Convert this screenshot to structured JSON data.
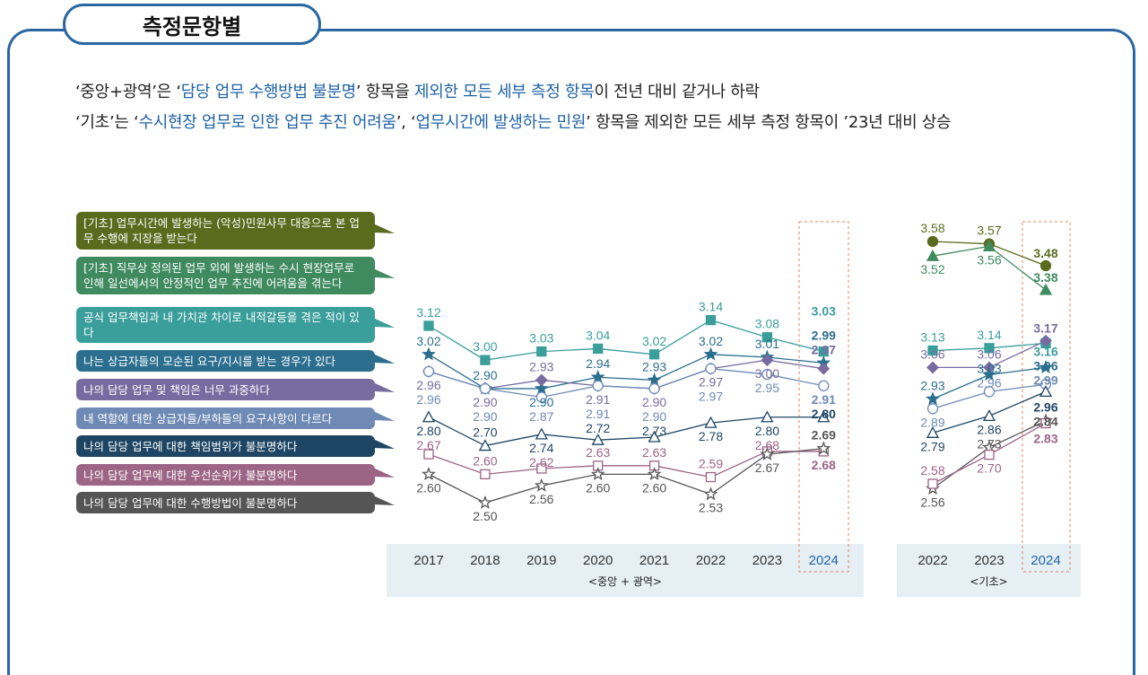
{
  "header": {
    "title": "측정문항별"
  },
  "summary": {
    "line1": [
      {
        "t": "‘중앙+광역’은 ‘",
        "hl": false
      },
      {
        "t": "담당 업무 수행방법 불분명",
        "hl": true
      },
      {
        "t": "’ 항목을 ",
        "hl": false
      },
      {
        "t": "제외한 모든 세부 측정 항목",
        "hl": true
      },
      {
        "t": "이 전년 대비 같거나 하락",
        "hl": false
      }
    ],
    "line2": [
      {
        "t": "‘기초’는 ‘",
        "hl": false
      },
      {
        "t": "수시현장 업무로 인한 업무 추진 어려움",
        "hl": true
      },
      {
        "t": "’, ‘",
        "hl": false
      },
      {
        "t": "업무시간에 발생하는 민원",
        "hl": true
      },
      {
        "t": "’ 항목을 제외한 모든 세부 측정 항목이 ’23년 대비 상승",
        "hl": false
      }
    ]
  },
  "colors": {
    "accent": "#2a66a0",
    "highlight": "#1f63a6",
    "band": "#e5eff4",
    "box": "#e8825a"
  },
  "chart_data": [
    {
      "type": "line",
      "xlabel": "<중앙 + 광역>",
      "categories": [
        "2017",
        "2018",
        "2019",
        "2020",
        "2021",
        "2022",
        "2023",
        "2024"
      ],
      "highlight_category": "2024",
      "series": [
        {
          "name": "공식 업무책임과 내 가치관 차이로 내적갈등을 겪은 적이 있다",
          "color": "#3a9e9b",
          "marker": "square-filled",
          "values": [
            3.12,
            3.0,
            3.03,
            3.04,
            3.02,
            3.14,
            3.08,
            3.03
          ]
        },
        {
          "name": "나는 상급자들의 모순된 요구/지시를 받는 경우가 있다",
          "color": "#2b6e8e",
          "marker": "star-filled",
          "values": [
            3.02,
            2.9,
            2.9,
            2.94,
            2.93,
            3.02,
            3.01,
            2.99
          ]
        },
        {
          "name": "나의 담당 업무 및 책임은 너무 과중하다",
          "color": "#776ba0",
          "marker": "diamond-filled",
          "values": [
            2.96,
            2.9,
            2.93,
            2.91,
            2.9,
            2.97,
            3.0,
            2.97
          ]
        },
        {
          "name": "내 역할에 대한 상급자들/부하들의 요구사항이 다르다",
          "color": "#6e8ab5",
          "marker": "circle-open",
          "values": [
            2.96,
            2.9,
            2.87,
            2.91,
            2.9,
            2.97,
            2.95,
            2.91
          ]
        },
        {
          "name": "나의 담당 업무에 대한 책임범위가 불분명하다",
          "color": "#1e4563",
          "marker": "triangle-open",
          "values": [
            2.8,
            2.7,
            2.74,
            2.72,
            2.73,
            2.78,
            2.8,
            2.8
          ]
        },
        {
          "name": "나의 담당 업무에 대한 우선순위가 불분명하다",
          "color": "#9c6485",
          "marker": "square-open",
          "values": [
            2.67,
            2.6,
            2.62,
            2.63,
            2.63,
            2.59,
            2.68,
            2.68
          ]
        },
        {
          "name": "나의 담당 업무에 대한 수행방법이 불분명하다",
          "color": "#555555",
          "marker": "star-open",
          "values": [
            2.6,
            2.5,
            2.56,
            2.6,
            2.6,
            2.53,
            2.67,
            2.69
          ]
        }
      ]
    },
    {
      "type": "line",
      "xlabel": "<기초>",
      "categories": [
        "2022",
        "2023",
        "2024"
      ],
      "highlight_category": "2024",
      "series": [
        {
          "name": "[기초] 업무시간에 발생하는 (악성)민원사무 대응으로 본 업무 수행에 지장을 받는다",
          "color": "#5b6b1e",
          "marker": "circle-filled",
          "values": [
            3.58,
            3.57,
            3.48
          ]
        },
        {
          "name": "[기초] 직무상 정의된 업무 외에 발생하는 수시 현장업무로 인해 일선에서의 안정적인 업무 추진에 어려움을 겪는다",
          "color": "#3f8a5f",
          "marker": "triangle-filled",
          "values": [
            3.52,
            3.56,
            3.38
          ]
        },
        {
          "name": "공식 업무책임과 내 가치관 차이로 내적갈등을 겪은 적이 있다",
          "color": "#3a9e9b",
          "marker": "square-filled",
          "values": [
            3.13,
            3.14,
            3.16
          ]
        },
        {
          "name": "나의 담당 업무 및 책임은 너무 과중하다",
          "color": "#776ba0",
          "marker": "diamond-filled",
          "values": [
            3.06,
            3.06,
            3.17
          ]
        },
        {
          "name": "나는 상급자들의 모순된 요구/지시를 받는 경우가 있다",
          "color": "#2b6e8e",
          "marker": "star-filled",
          "values": [
            2.93,
            3.03,
            3.06
          ]
        },
        {
          "name": "내 역할에 대한 상급자들/부하들의 요구사항이 다르다",
          "color": "#6e8ab5",
          "marker": "circle-open",
          "values": [
            2.89,
            2.96,
            2.99
          ]
        },
        {
          "name": "나의 담당 업무에 대한 책임범위가 불분명하다",
          "color": "#1e4563",
          "marker": "triangle-open",
          "values": [
            2.79,
            2.86,
            2.96
          ]
        },
        {
          "name": "나의 담당 업무에 대한 수행방법이 불분명하다",
          "color": "#555555",
          "marker": "star-open",
          "values": [
            2.56,
            2.73,
            2.84
          ]
        },
        {
          "name": "나의 담당 업무에 대한 우선순위가 불분명하다",
          "color": "#9c6485",
          "marker": "square-open",
          "values": [
            2.58,
            2.7,
            2.83
          ]
        }
      ]
    }
  ],
  "legend": [
    {
      "label": "[기초] 업무시간에 발생하는 (악성)민원사무 대응으로 본 업무 수행에 지장을 받는다",
      "color": "#5b6b1e"
    },
    {
      "label": "[기초] 직무상 정의된 업무 외에 발생하는 수시 현장업무로 인해 일선에서의 안정적인 업무 추진에 어려움을 겪는다",
      "color": "#3f8a5f"
    },
    {
      "label": "공식 업무책임과 내 가치관 차이로 내적갈등을 겪은 적이 있다",
      "color": "#3a9e9b"
    },
    {
      "label": "나는 상급자들의 모순된 요구/지시를 받는 경우가 있다",
      "color": "#2b6e8e"
    },
    {
      "label": "나의 담당 업무 및 책임은 너무 과중하다",
      "color": "#776ba0"
    },
    {
      "label": "내 역할에 대한 상급자들/부하들의 요구사항이 다르다",
      "color": "#6e8ab5"
    },
    {
      "label": "나의 담당 업무에 대한 책임범위가 불분명하다",
      "color": "#1e4563"
    },
    {
      "label": "나의 담당 업무에 대한 우선순위가 불분명하다",
      "color": "#9c6485"
    },
    {
      "label": "나의 담당 업무에 대한 수행방법이 불분명하다",
      "color": "#555555"
    }
  ]
}
